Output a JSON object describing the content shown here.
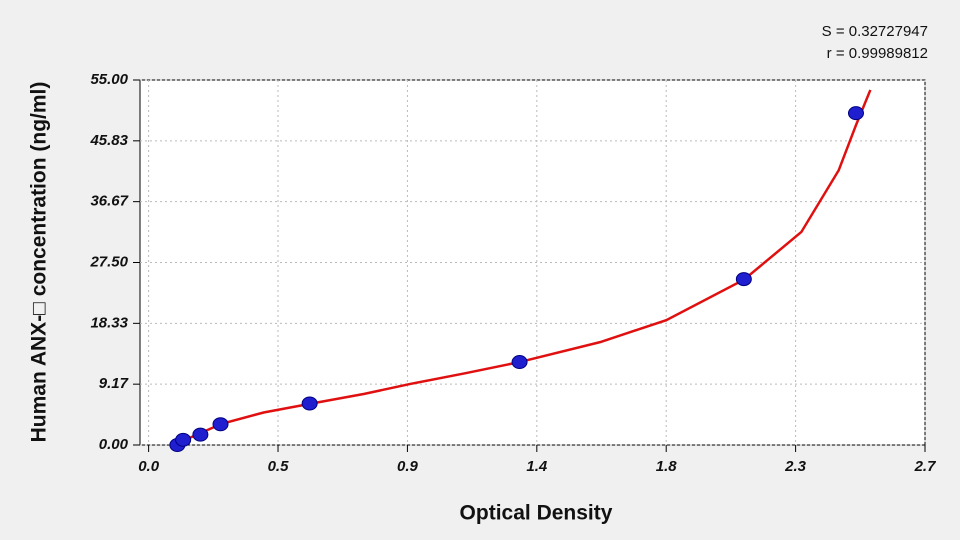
{
  "chart_data": {
    "type": "scatter",
    "x_label": "Optical Density",
    "y_label": "Human  ANX-□ concentration (ng/ml)",
    "annotations": [
      "S = 0.32727947",
      "r = 0.99989812"
    ],
    "series": [
      {
        "color": "#1f1fd0",
        "x": [
          0.1,
          0.12,
          0.18,
          0.25,
          0.56,
          1.29,
          2.07,
          2.46
        ],
        "values": [
          0,
          0.78,
          1.56,
          3.13,
          6.25,
          12.5,
          25,
          50
        ]
      }
    ],
    "curve": {
      "color": "#e01010",
      "x": [
        0.087,
        0.17,
        0.254,
        0.4,
        0.56,
        0.75,
        0.91,
        1.1,
        1.29,
        1.57,
        1.8,
        2.07,
        2.27,
        2.4,
        2.46,
        2.51
      ],
      "values": [
        0,
        1.6,
        3.2,
        4.9,
        6.2,
        7.7,
        9.2,
        10.8,
        12.5,
        15.5,
        18.8,
        24.9,
        32.1,
        41.4,
        48.2,
        53.5
      ]
    },
    "xlim": [
      -0.03,
      2.7
    ],
    "xticks": [
      {
        "value": 0,
        "label": "0.0"
      },
      {
        "value": 0.45,
        "label": "0.5"
      },
      0.9,
      {
        "value": 1.35,
        "label": "1.4"
      },
      1.8,
      {
        "value": 2.25,
        "label": "2.3"
      },
      2.7
    ],
    "ylim": [
      0,
      55
    ],
    "yticks": [
      {
        "value": 0,
        "label": "0.00"
      },
      {
        "value": 9.1667,
        "label": "9.17"
      },
      {
        "value": 18.333,
        "label": "18.33"
      },
      {
        "value": 27.5,
        "label": "27.50"
      },
      {
        "value": 36.667,
        "label": "36.67"
      },
      {
        "value": 45.833,
        "label": "45.83"
      },
      {
        "value": 55,
        "label": "55.00"
      }
    ],
    "grid": true
  }
}
